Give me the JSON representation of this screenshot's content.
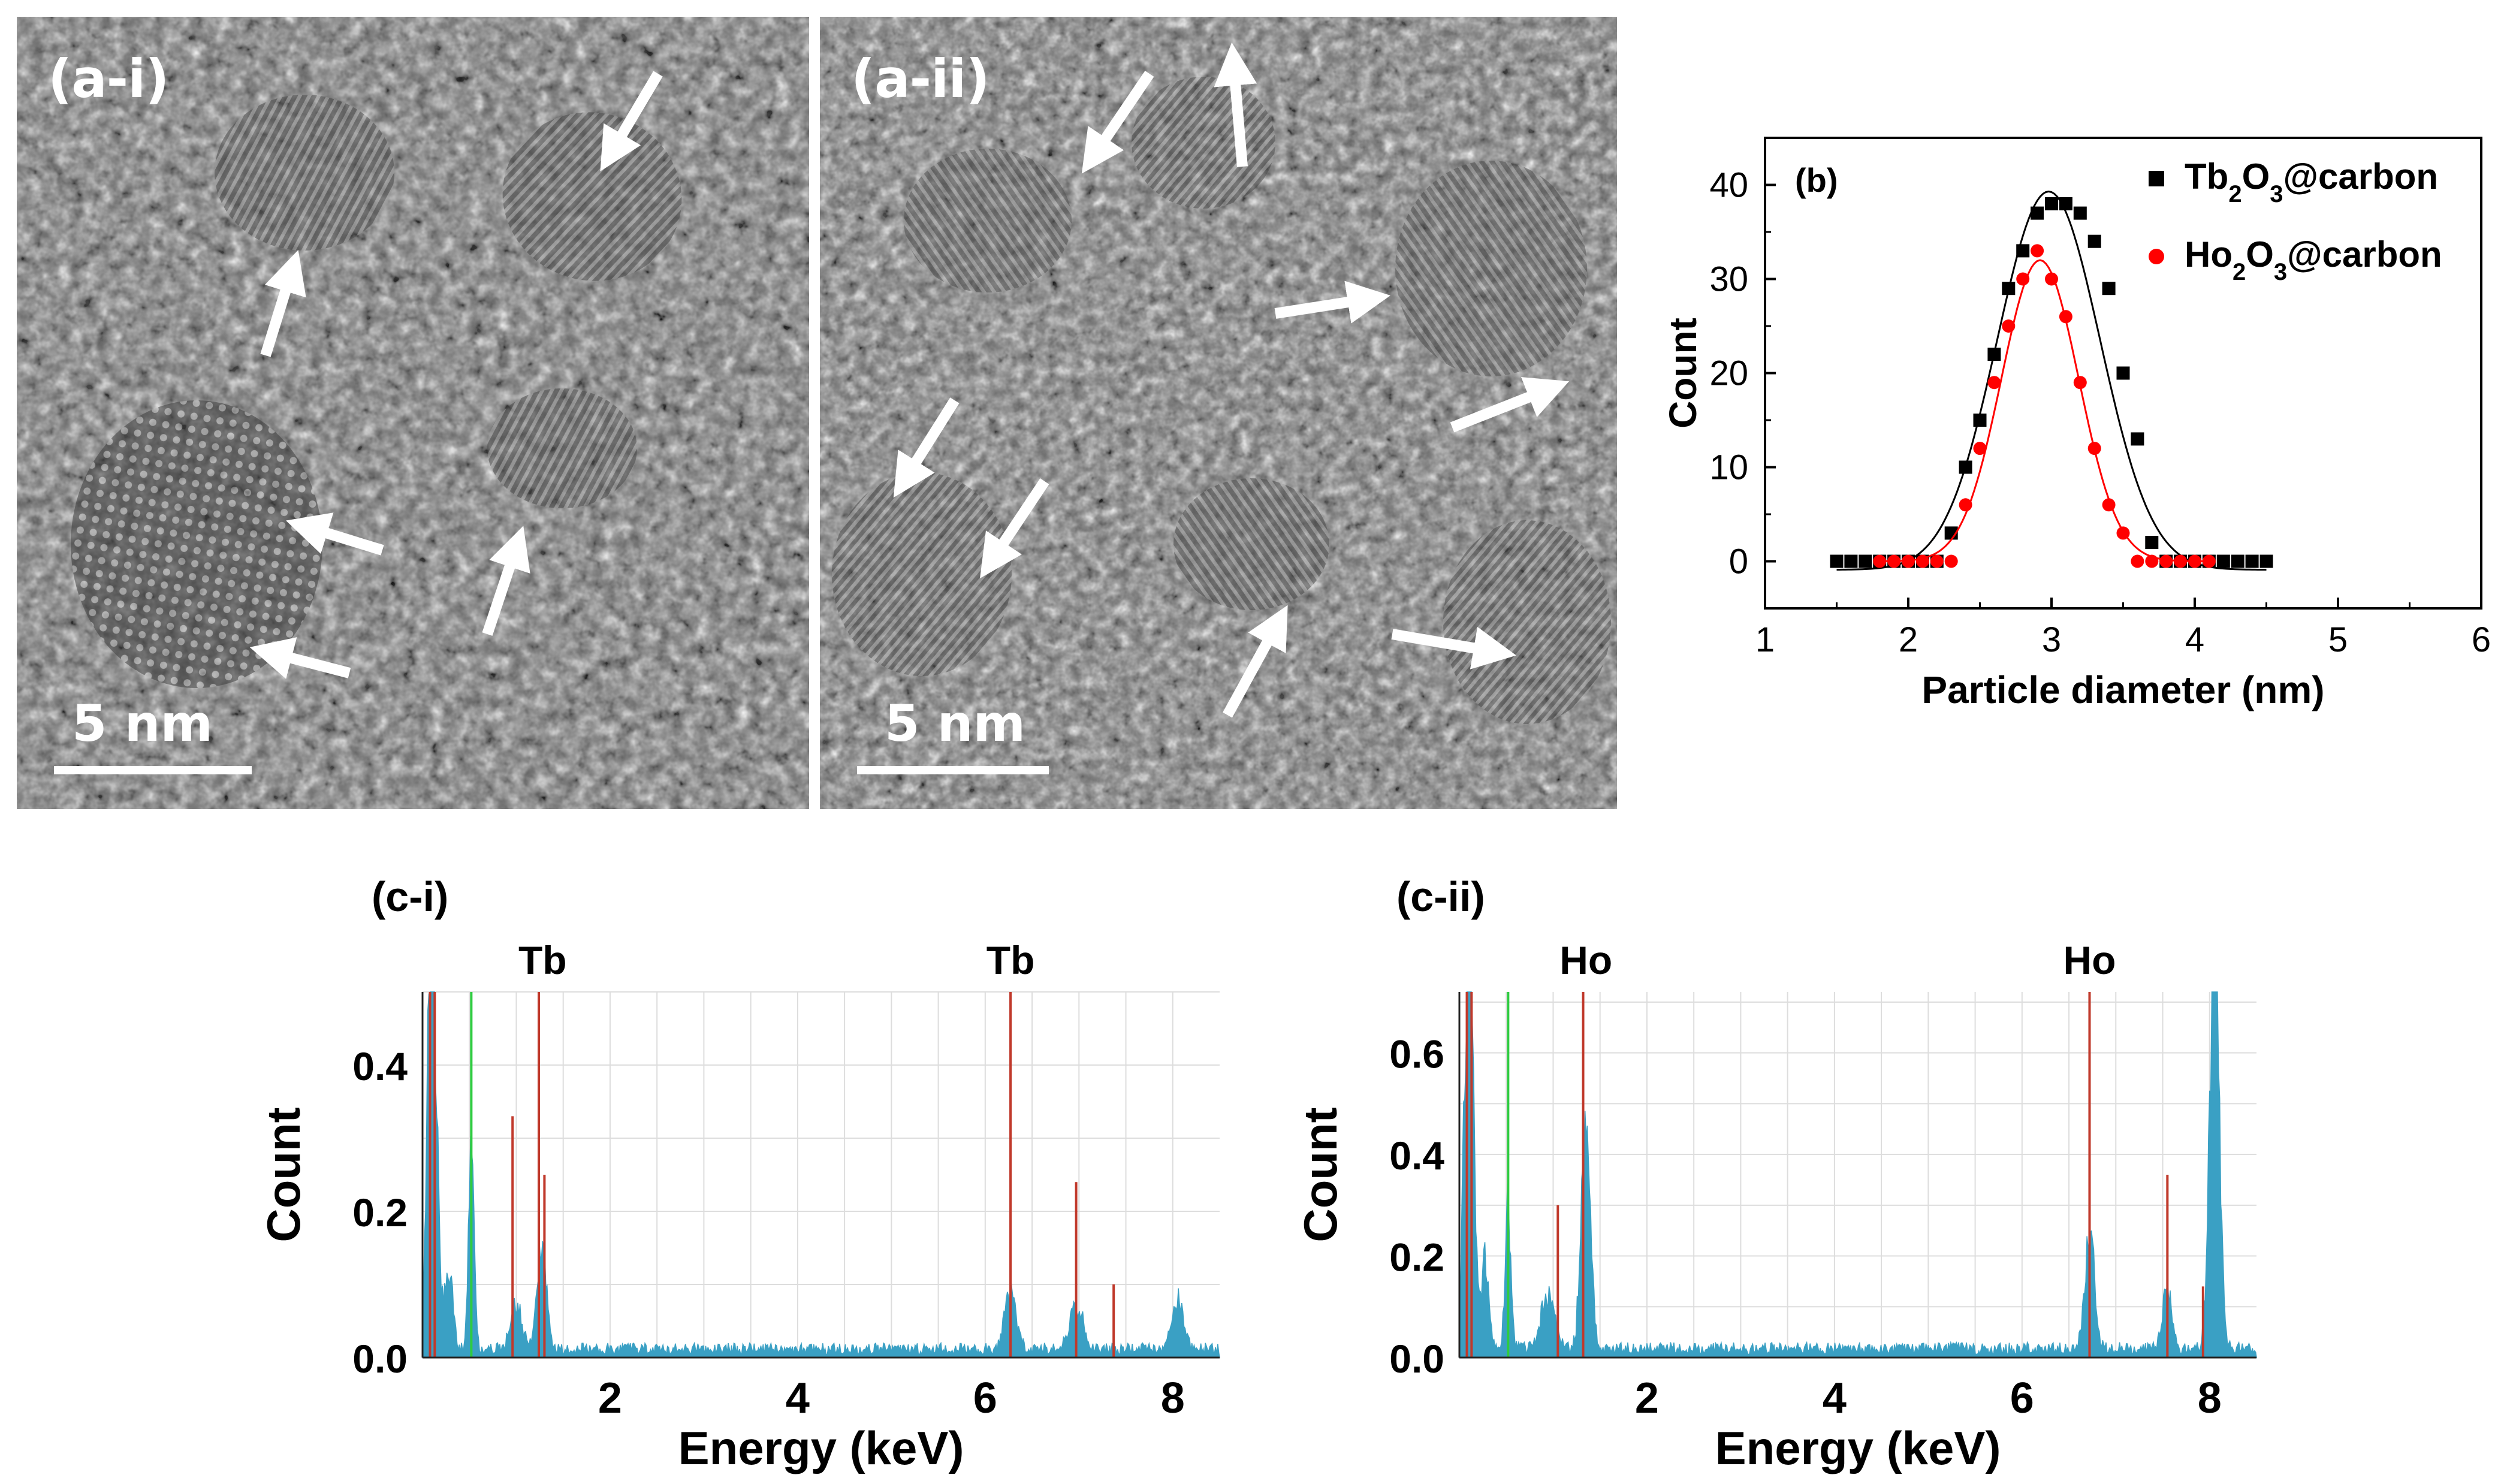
{
  "figure": {
    "panel_a_i": {
      "label": "(a-i)",
      "scale_bar": "5 nm"
    },
    "panel_a_ii": {
      "label": "(a-ii)",
      "scale_bar": "5 nm"
    },
    "panel_c_i": {
      "label": "(c-i)",
      "peak_labels": [
        "Tb",
        "Tb"
      ]
    },
    "panel_c_ii": {
      "label": "(c-ii)",
      "peak_labels": [
        "Ho",
        "Ho"
      ]
    }
  },
  "colors": {
    "tb_series": "#000000",
    "ho_series": "#ff0000",
    "eds_spectrum": "#3aa0c4",
    "eds_marker": "#c0392b",
    "eds_marker_green": "#2ecc40"
  },
  "chart_data": [
    {
      "id": "b",
      "type": "scatter",
      "panel_label": "(b)",
      "xlabel": "Particle diameter (nm)",
      "ylabel": "Count",
      "xlim": [
        1,
        6
      ],
      "ylim": [
        -5,
        45
      ],
      "xticks": [
        1,
        2,
        3,
        4,
        5,
        6
      ],
      "yticks": [
        0,
        10,
        20,
        30,
        40
      ],
      "legend_position": "top-right",
      "series": [
        {
          "name": "Tb2O3@carbon",
          "legend_parts": [
            "Tb",
            "2",
            "O",
            "3",
            "@carbon"
          ],
          "marker": "square",
          "x": [
            1.5,
            1.6,
            1.7,
            1.8,
            1.9,
            2.0,
            2.1,
            2.2,
            2.3,
            2.4,
            2.5,
            2.6,
            2.7,
            2.8,
            2.9,
            3.0,
            3.1,
            3.2,
            3.3,
            3.4,
            3.5,
            3.6,
            3.7,
            3.8,
            3.9,
            4.0,
            4.1,
            4.2,
            4.3,
            4.4,
            4.5
          ],
          "y": [
            0,
            0,
            0,
            0,
            0,
            0,
            0,
            0,
            3,
            10,
            15,
            22,
            29,
            33,
            37,
            38,
            38,
            37,
            34,
            29,
            20,
            13,
            2,
            0,
            0,
            0,
            0,
            0,
            0,
            0,
            0
          ],
          "fit": {
            "mean": 2.98,
            "sigma": 0.36,
            "amplitude": 40.2,
            "offset": -0.9,
            "x_range": [
              1.5,
              4.5
            ]
          }
        },
        {
          "name": "Ho2O3@carbon",
          "legend_parts": [
            "Ho",
            "2",
            "O",
            "3",
            "@carbon"
          ],
          "marker": "circle",
          "x": [
            1.8,
            1.9,
            2.0,
            2.1,
            2.2,
            2.3,
            2.4,
            2.5,
            2.6,
            2.7,
            2.8,
            2.9,
            3.0,
            3.1,
            3.2,
            3.3,
            3.4,
            3.5,
            3.6,
            3.7,
            3.8,
            3.9,
            4.0,
            4.1
          ],
          "y": [
            0,
            0,
            0,
            0,
            0,
            0,
            6,
            12,
            19,
            25,
            30,
            33,
            30,
            26,
            19,
            12,
            6,
            3,
            0,
            0,
            0,
            0,
            0,
            0
          ],
          "fit": {
            "mean": 2.92,
            "sigma": 0.27,
            "amplitude": 32,
            "offset": 0,
            "x_range": [
              1.8,
              4.1
            ]
          }
        }
      ]
    },
    {
      "id": "c-i",
      "type": "bar",
      "xlabel": "Energy (keV)",
      "ylabel": "Count",
      "xlim": [
        0,
        8.5
      ],
      "ylim": [
        0,
        0.5
      ],
      "xticks": [
        2,
        4,
        6,
        8
      ],
      "yticks": [
        0.0,
        0.2,
        0.4
      ],
      "ytick_labels": [
        "0.0",
        "0.2",
        "0.4"
      ],
      "spectrum_peaks": [
        {
          "center": 0.1,
          "height": 0.6,
          "width": 0.05
        },
        {
          "center": 0.28,
          "height": 0.12,
          "width": 0.04
        },
        {
          "center": 0.52,
          "height": 0.26,
          "width": 0.03
        },
        {
          "center": 1.0,
          "height": 0.06,
          "width": 0.06
        },
        {
          "center": 1.27,
          "height": 0.14,
          "width": 0.05
        },
        {
          "center": 6.27,
          "height": 0.08,
          "width": 0.06
        },
        {
          "center": 6.97,
          "height": 0.06,
          "width": 0.07
        },
        {
          "center": 8.05,
          "height": 0.07,
          "width": 0.06
        }
      ],
      "baseline": 0.01,
      "marker_lines": [
        {
          "x": 0.08,
          "height": 0.5,
          "color": "red"
        },
        {
          "x": 0.13,
          "height": 0.5,
          "color": "red"
        },
        {
          "x": 0.52,
          "height": 0.5,
          "color": "green"
        },
        {
          "x": 0.96,
          "height": 0.33,
          "color": "red"
        },
        {
          "x": 1.24,
          "height": 0.5,
          "color": "red"
        },
        {
          "x": 1.3,
          "height": 0.25,
          "color": "red"
        },
        {
          "x": 6.27,
          "height": 0.5,
          "color": "red"
        },
        {
          "x": 6.97,
          "height": 0.24,
          "color": "red"
        },
        {
          "x": 7.37,
          "height": 0.1,
          "color": "red"
        }
      ],
      "peak_label_x": [
        1.28,
        6.27
      ]
    },
    {
      "id": "c-ii",
      "type": "bar",
      "xlabel": "Energy (keV)",
      "ylabel": "Count",
      "xlim": [
        0,
        8.5
      ],
      "ylim": [
        0,
        0.72
      ],
      "xticks": [
        2,
        4,
        6,
        8
      ],
      "yticks": [
        0.0,
        0.2,
        0.4,
        0.6
      ],
      "ytick_labels": [
        "0.0",
        "0.2",
        "0.4",
        "0.6"
      ],
      "spectrum_peaks": [
        {
          "center": 0.1,
          "height": 0.8,
          "width": 0.05
        },
        {
          "center": 0.27,
          "height": 0.18,
          "width": 0.04
        },
        {
          "center": 0.52,
          "height": 0.3,
          "width": 0.03
        },
        {
          "center": 0.95,
          "height": 0.12,
          "width": 0.07
        },
        {
          "center": 1.35,
          "height": 0.46,
          "width": 0.05
        },
        {
          "center": 6.72,
          "height": 0.24,
          "width": 0.05
        },
        {
          "center": 7.55,
          "height": 0.12,
          "width": 0.05
        },
        {
          "center": 8.05,
          "height": 0.85,
          "width": 0.05
        }
      ],
      "baseline": 0.015,
      "marker_lines": [
        {
          "x": 0.08,
          "height": 0.72,
          "color": "red"
        },
        {
          "x": 0.13,
          "height": 0.72,
          "color": "red"
        },
        {
          "x": 0.52,
          "height": 0.72,
          "color": "green"
        },
        {
          "x": 1.05,
          "height": 0.3,
          "color": "red"
        },
        {
          "x": 1.32,
          "height": 0.72,
          "color": "red"
        },
        {
          "x": 6.72,
          "height": 0.72,
          "color": "red"
        },
        {
          "x": 7.55,
          "height": 0.36,
          "color": "red"
        },
        {
          "x": 7.93,
          "height": 0.14,
          "color": "red"
        }
      ],
      "peak_label_x": [
        1.35,
        6.72
      ]
    }
  ]
}
